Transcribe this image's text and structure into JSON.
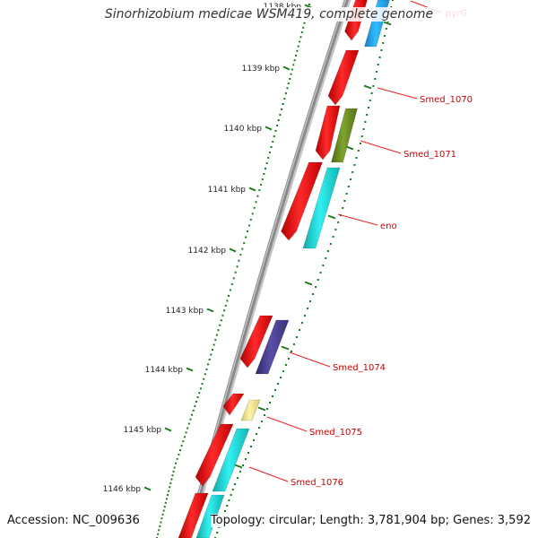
{
  "title": "Sinorhizobium medicae WSM419, complete genome",
  "accession_text": "Accession: NC_009636",
  "stats_text": "Topology: circular; Length: 3,781,904 bp; Genes: 3,592",
  "kbp_labels": [
    "1138 kbp",
    "1139 kbp",
    "1140 kbp",
    "1141 kbp",
    "1142 kbp",
    "1143 kbp",
    "1144 kbp",
    "1145 kbp",
    "1146 kbp"
  ],
  "gene_labels": [
    "pyrG",
    "Smed_1070",
    "Smed_1071",
    "eno",
    "Smed_1074",
    "Smed_1075",
    "Smed_1076"
  ],
  "colors": {
    "backbone": "#8a8a8a",
    "cds_red": "#ee1111",
    "gene_cyan": "#22dddd",
    "gene_sky": "#22aaee",
    "gene_olive": "#6b8e23",
    "gene_indigo": "#4b3f8f",
    "gene_khaki": "#f0e68c",
    "ticks": "#1a7a1a",
    "label_red": "#cc0000",
    "leader": "#ee2222"
  }
}
